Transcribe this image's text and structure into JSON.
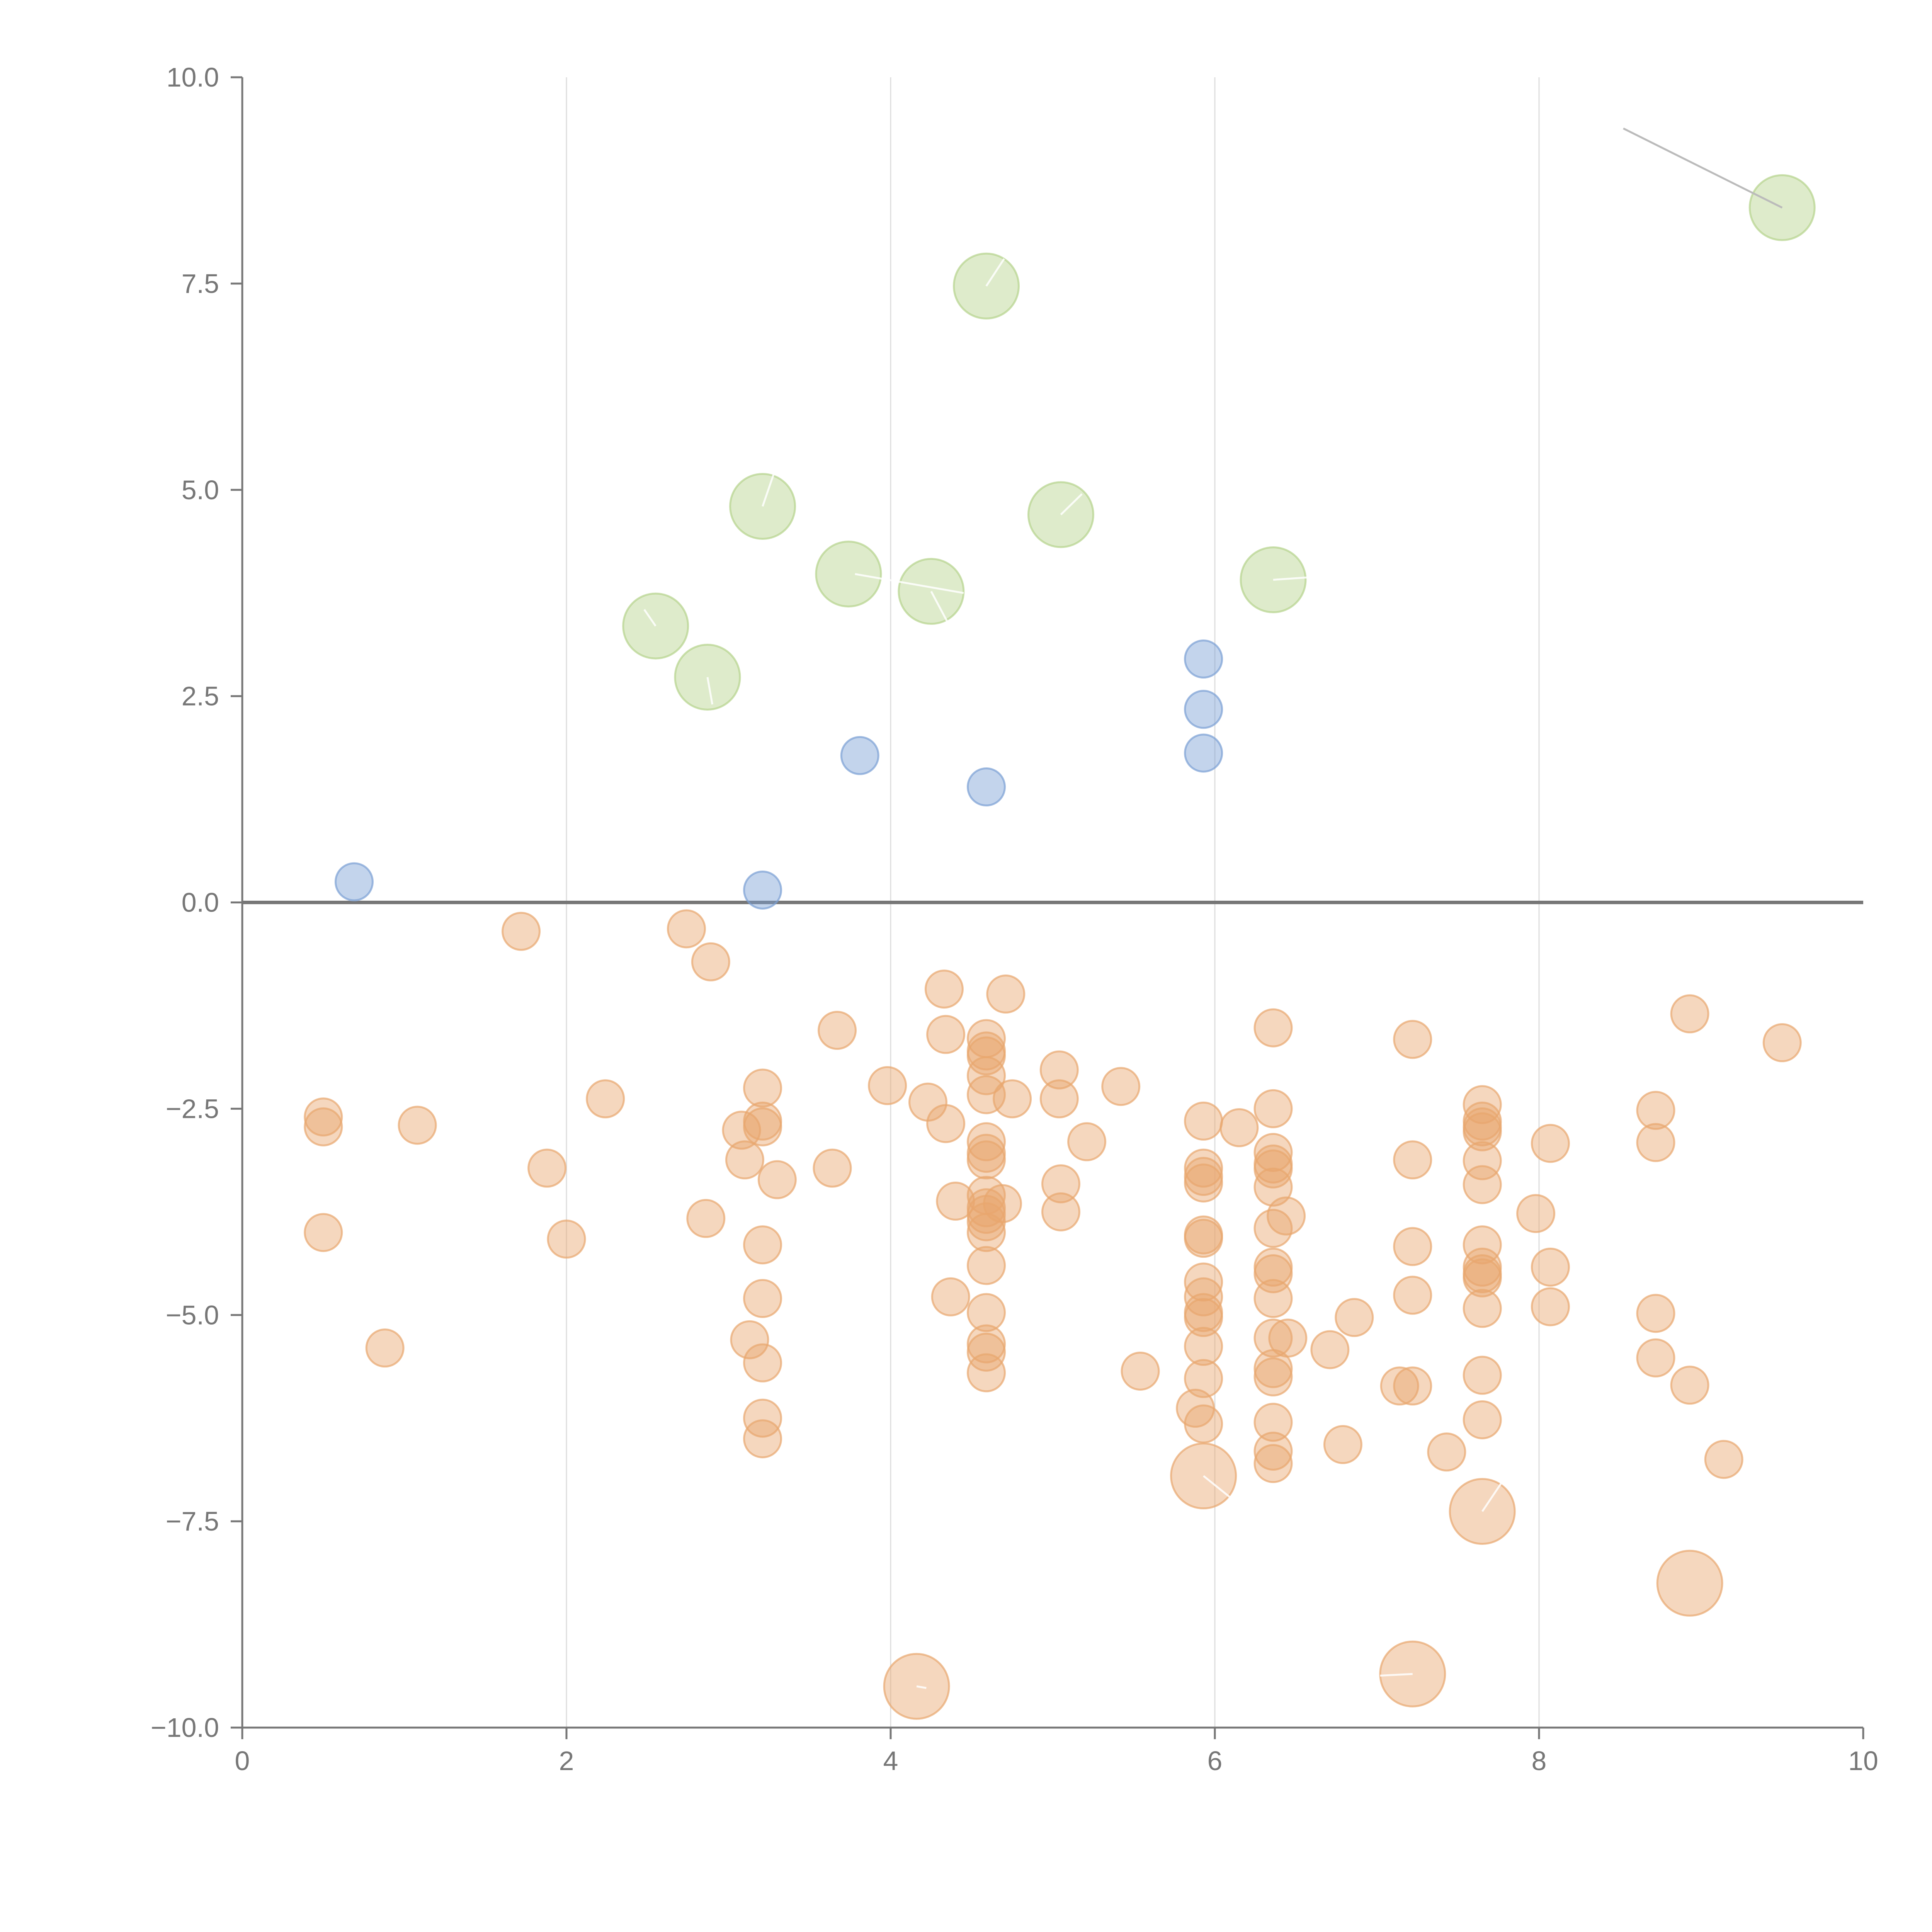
{
  "chart_data": {
    "type": "scatter",
    "title": "",
    "xlabel": "",
    "ylabel": "",
    "xlim": [
      0,
      10
    ],
    "ylim": [
      -10,
      10
    ],
    "grid": {
      "x": true,
      "y": false
    },
    "zero_line": true,
    "x_ticks": [
      "0",
      "2",
      "4",
      "6",
      "8",
      "10"
    ],
    "y_ticks": [
      "10.0",
      "7.5",
      "5.0",
      "2.5",
      "0.0",
      "−2.5",
      "−5.0",
      "−7.5",
      "−10.0"
    ],
    "x_tick_values": [
      0,
      2,
      4,
      6,
      8,
      10
    ],
    "y_tick_values": [
      10,
      7.5,
      5,
      2.5,
      0,
      -2.5,
      -5,
      -7.5,
      -10
    ],
    "size_units": "relative",
    "series": [
      {
        "name": "positive-small",
        "color": "#7b9fd4",
        "size": 1,
        "points": [
          [
            0.69,
            0.25
          ],
          [
            3.21,
            0.15
          ],
          [
            3.81,
            1.78
          ],
          [
            4.59,
            1.4
          ],
          [
            5.93,
            2.95
          ],
          [
            5.93,
            2.34
          ],
          [
            5.93,
            1.81
          ]
        ]
      },
      {
        "name": "positive-large",
        "color": "#b5d38c",
        "size": 1.75,
        "points": [
          [
            2.55,
            3.35
          ],
          [
            2.87,
            2.73
          ],
          [
            3.21,
            4.8
          ],
          [
            3.74,
            3.98
          ],
          [
            4.25,
            3.77
          ],
          [
            4.59,
            7.47
          ],
          [
            5.05,
            4.7
          ],
          [
            6.36,
            3.91
          ],
          [
            9.5,
            8.42
          ]
        ]
      },
      {
        "name": "negative-small",
        "color": "#e8a76e",
        "size": 1,
        "points": [
          [
            0.5,
            -2.6
          ],
          [
            0.5,
            -2.72
          ],
          [
            0.5,
            -4.0
          ],
          [
            0.88,
            -5.4
          ],
          [
            1.08,
            -2.7
          ],
          [
            1.72,
            -0.35
          ],
          [
            1.88,
            -3.22
          ],
          [
            2.0,
            -4.08
          ],
          [
            2.24,
            -2.38
          ],
          [
            2.74,
            -0.32
          ],
          [
            2.86,
            -3.83
          ],
          [
            2.89,
            -0.72
          ],
          [
            3.08,
            -2.76
          ],
          [
            3.1,
            -3.12
          ],
          [
            3.13,
            -5.3
          ],
          [
            3.21,
            -2.25
          ],
          [
            3.21,
            -2.65
          ],
          [
            3.21,
            -2.72
          ],
          [
            3.21,
            -4.15
          ],
          [
            3.21,
            -4.8
          ],
          [
            3.21,
            -5.58
          ],
          [
            3.21,
            -6.25
          ],
          [
            3.21,
            -6.5
          ],
          [
            3.3,
            -3.36
          ],
          [
            3.64,
            -3.22
          ],
          [
            3.67,
            -1.55
          ],
          [
            3.98,
            -2.22
          ],
          [
            4.23,
            -2.42
          ],
          [
            4.33,
            -1.05
          ],
          [
            4.34,
            -1.6
          ],
          [
            4.34,
            -2.68
          ],
          [
            4.37,
            -4.78
          ],
          [
            4.4,
            -3.62
          ],
          [
            4.59,
            -1.65
          ],
          [
            4.59,
            -1.8
          ],
          [
            4.59,
            -1.86
          ],
          [
            4.59,
            -2.1
          ],
          [
            4.59,
            -2.33
          ],
          [
            4.59,
            -2.9
          ],
          [
            4.59,
            -3.04
          ],
          [
            4.59,
            -3.12
          ],
          [
            4.59,
            -3.55
          ],
          [
            4.59,
            -3.7
          ],
          [
            4.59,
            -3.78
          ],
          [
            4.59,
            -3.87
          ],
          [
            4.59,
            -4.0
          ],
          [
            4.59,
            -4.4
          ],
          [
            4.59,
            -4.97
          ],
          [
            4.59,
            -5.35
          ],
          [
            4.59,
            -5.45
          ],
          [
            4.59,
            -5.7
          ],
          [
            4.69,
            -3.65
          ],
          [
            4.71,
            -1.11
          ],
          [
            4.75,
            -2.38
          ],
          [
            5.04,
            -2.03
          ],
          [
            5.04,
            -2.38
          ],
          [
            5.05,
            -3.41
          ],
          [
            5.05,
            -3.75
          ],
          [
            5.21,
            -2.9
          ],
          [
            5.42,
            -2.23
          ],
          [
            5.54,
            -5.68
          ],
          [
            5.88,
            -6.13
          ],
          [
            5.93,
            -2.65
          ],
          [
            5.93,
            -3.22
          ],
          [
            5.93,
            -3.32
          ],
          [
            5.93,
            -3.4
          ],
          [
            5.93,
            -4.03
          ],
          [
            5.93,
            -4.07
          ],
          [
            5.93,
            -4.6
          ],
          [
            5.93,
            -4.78
          ],
          [
            5.93,
            -4.97
          ],
          [
            5.93,
            -5.03
          ],
          [
            5.93,
            -5.38
          ],
          [
            5.93,
            -5.77
          ],
          [
            5.93,
            -6.32
          ],
          [
            6.15,
            -2.73
          ],
          [
            6.36,
            -1.52
          ],
          [
            6.36,
            -2.5
          ],
          [
            6.36,
            -3.03
          ],
          [
            6.36,
            -3.17
          ],
          [
            6.36,
            -3.23
          ],
          [
            6.36,
            -3.45
          ],
          [
            6.36,
            -3.95
          ],
          [
            6.36,
            -4.42
          ],
          [
            6.36,
            -4.5
          ],
          [
            6.36,
            -4.8
          ],
          [
            6.36,
            -5.28
          ],
          [
            6.36,
            -5.65
          ],
          [
            6.36,
            -5.75
          ],
          [
            6.36,
            -6.3
          ],
          [
            6.36,
            -6.65
          ],
          [
            6.36,
            -6.8
          ],
          [
            6.44,
            -3.8
          ],
          [
            6.45,
            -5.28
          ],
          [
            6.71,
            -5.42
          ],
          [
            6.79,
            -6.57
          ],
          [
            6.86,
            -5.03
          ],
          [
            7.14,
            -5.86
          ],
          [
            7.22,
            -1.66
          ],
          [
            7.22,
            -3.12
          ],
          [
            7.22,
            -4.17
          ],
          [
            7.22,
            -4.76
          ],
          [
            7.22,
            -5.86
          ],
          [
            7.43,
            -6.66
          ],
          [
            7.65,
            -2.45
          ],
          [
            7.65,
            -2.65
          ],
          [
            7.65,
            -2.72
          ],
          [
            7.65,
            -2.78
          ],
          [
            7.65,
            -3.13
          ],
          [
            7.65,
            -3.42
          ],
          [
            7.65,
            -4.15
          ],
          [
            7.65,
            -4.42
          ],
          [
            7.65,
            -4.5
          ],
          [
            7.65,
            -4.55
          ],
          [
            7.65,
            -4.92
          ],
          [
            7.65,
            -5.73
          ],
          [
            7.65,
            -6.27
          ],
          [
            7.98,
            -3.77
          ],
          [
            8.07,
            -2.92
          ],
          [
            8.07,
            -4.42
          ],
          [
            8.07,
            -4.9
          ],
          [
            8.72,
            -2.52
          ],
          [
            8.72,
            -2.91
          ],
          [
            8.72,
            -4.98
          ],
          [
            8.72,
            -5.52
          ],
          [
            8.93,
            -1.35
          ],
          [
            8.93,
            -5.85
          ],
          [
            9.14,
            -6.75
          ],
          [
            9.5,
            -1.7
          ]
        ]
      },
      {
        "name": "negative-large",
        "color": "#e8a76e",
        "size": 1.75,
        "points": [
          [
            4.16,
            -9.5
          ],
          [
            5.93,
            -6.95
          ],
          [
            7.22,
            -9.35
          ],
          [
            7.65,
            -7.38
          ],
          [
            8.93,
            -8.25
          ]
        ]
      }
    ],
    "annotation_leaders": [
      {
        "from": [
          2.48,
          3.55
        ],
        "to": [
          2.55,
          3.35
        ]
      },
      {
        "from": [
          2.9,
          2.4
        ],
        "to": [
          2.87,
          2.73
        ]
      },
      {
        "from": [
          3.28,
          5.2
        ],
        "to": [
          3.21,
          4.8
        ]
      },
      {
        "from": [
          3.78,
          3.98
        ],
        "to": [
          4.45,
          3.75
        ]
      },
      {
        "from": [
          4.35,
          3.4
        ],
        "to": [
          4.25,
          3.77
        ]
      },
      {
        "from": [
          4.7,
          7.8
        ],
        "to": [
          4.59,
          7.47
        ]
      },
      {
        "from": [
          5.18,
          4.95
        ],
        "to": [
          5.05,
          4.7
        ]
      },
      {
        "from": [
          6.58,
          3.94
        ],
        "to": [
          6.36,
          3.91
        ]
      },
      {
        "from": [
          8.52,
          9.38
        ],
        "to": [
          9.5,
          8.42
        ],
        "outside": true
      },
      {
        "from": [
          4.22,
          -9.52
        ],
        "to": [
          4.16,
          -9.5
        ]
      },
      {
        "from": [
          6.12,
          -7.25
        ],
        "to": [
          5.93,
          -6.95
        ]
      },
      {
        "from": [
          7.02,
          -9.37
        ],
        "to": [
          7.22,
          -9.35
        ]
      },
      {
        "from": [
          7.78,
          -7.0
        ],
        "to": [
          7.65,
          -7.38
        ]
      }
    ]
  }
}
